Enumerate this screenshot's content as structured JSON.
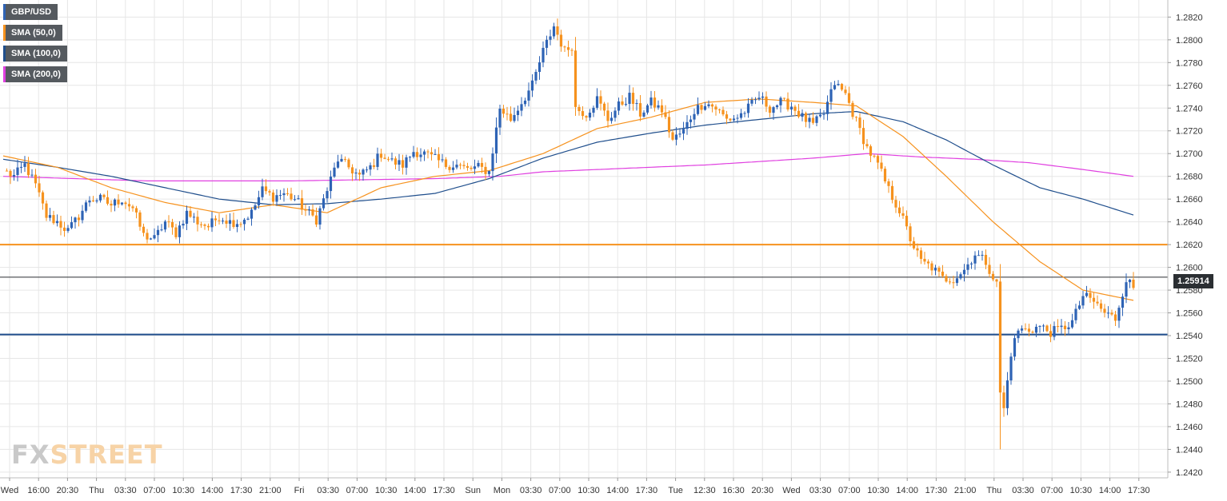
{
  "chart_data": {
    "type": "candlestick",
    "symbol": "GBP/USD",
    "legend": [
      {
        "label": "GBP/USD",
        "color": "#2e63b5"
      },
      {
        "label": "SMA (50,0)",
        "color": "#f6921e"
      },
      {
        "label": "SMA (100,0)",
        "color": "#1f4e8c"
      },
      {
        "label": "SMA (200,0)",
        "color": "#e040e0"
      }
    ],
    "ylim": [
      1.2415,
      1.2835
    ],
    "yticks": [
      "1.2820",
      "1.2800",
      "1.2780",
      "1.2760",
      "1.2740",
      "1.2720",
      "1.2700",
      "1.2680",
      "1.2660",
      "1.2640",
      "1.2620",
      "1.2600",
      "1.2580",
      "1.2560",
      "1.2540",
      "1.2520",
      "1.2500",
      "1.2480",
      "1.2460",
      "1.2440",
      "1.2420"
    ],
    "xticks": [
      "Wed",
      "16:00",
      "20:30",
      "Thu",
      "03:30",
      "07:00",
      "10:30",
      "14:00",
      "17:30",
      "21:00",
      "Fri",
      "03:30",
      "07:00",
      "10:30",
      "14:00",
      "17:30",
      "Sun",
      "Mon",
      "03:30",
      "07:00",
      "10:30",
      "14:00",
      "17:30",
      "Tue",
      "12:30",
      "16:30",
      "20:30",
      "Wed",
      "03:30",
      "07:00",
      "10:30",
      "14:00",
      "17:30",
      "21:00",
      "Thu",
      "03:30",
      "07:00",
      "10:30",
      "14:00",
      "17:30"
    ],
    "current_price": "1.25914",
    "current_price_value": 1.25914,
    "horizontal_levels": [
      {
        "value": 1.262,
        "color": "#f6921e"
      },
      {
        "value": 1.2541,
        "color": "#1f4e8c"
      }
    ],
    "close_anchors": [
      [
        0,
        1.2685
      ],
      [
        3,
        1.268
      ],
      [
        6,
        1.269
      ],
      [
        9,
        1.2672
      ],
      [
        12,
        1.2645
      ],
      [
        15,
        1.264
      ],
      [
        18,
        1.2632
      ],
      [
        21,
        1.2645
      ],
      [
        24,
        1.266
      ],
      [
        27,
        1.266
      ],
      [
        30,
        1.2655
      ],
      [
        33,
        1.266
      ],
      [
        36,
        1.2652
      ],
      [
        39,
        1.2628
      ],
      [
        42,
        1.2625
      ],
      [
        45,
        1.264
      ],
      [
        48,
        1.263
      ],
      [
        51,
        1.2648
      ],
      [
        54,
        1.264
      ],
      [
        57,
        1.2636
      ],
      [
        60,
        1.2645
      ],
      [
        63,
        1.264
      ],
      [
        66,
        1.264
      ],
      [
        69,
        1.2648
      ],
      [
        72,
        1.2668
      ],
      [
        75,
        1.2662
      ],
      [
        78,
        1.2665
      ],
      [
        81,
        1.266
      ],
      [
        84,
        1.265
      ],
      [
        87,
        1.2642
      ],
      [
        90,
        1.2668
      ],
      [
        93,
        1.2695
      ],
      [
        96,
        1.2688
      ],
      [
        99,
        1.268
      ],
      [
        102,
        1.2688
      ],
      [
        105,
        1.27
      ],
      [
        108,
        1.2693
      ],
      [
        111,
        1.269
      ],
      [
        114,
        1.2702
      ],
      [
        117,
        1.27
      ],
      [
        120,
        1.2695
      ],
      [
        123,
        1.269
      ],
      [
        126,
        1.269
      ],
      [
        129,
        1.2686
      ],
      [
        132,
        1.2688
      ],
      [
        135,
        1.2684
      ],
      [
        138,
        1.274
      ],
      [
        141,
        1.273
      ],
      [
        144,
        1.2745
      ],
      [
        147,
        1.276
      ],
      [
        150,
        1.279
      ],
      [
        153,
        1.2812
      ],
      [
        156,
        1.279
      ],
      [
        158,
        1.2795
      ],
      [
        159,
        1.274
      ],
      [
        162,
        1.2735
      ],
      [
        165,
        1.2748
      ],
      [
        168,
        1.273
      ],
      [
        171,
        1.2742
      ],
      [
        174,
        1.275
      ],
      [
        177,
        1.2735
      ],
      [
        180,
        1.2745
      ],
      [
        183,
        1.2738
      ],
      [
        186,
        1.2712
      ],
      [
        189,
        1.272
      ],
      [
        192,
        1.2738
      ],
      [
        195,
        1.2745
      ],
      [
        198,
        1.274
      ],
      [
        201,
        1.273
      ],
      [
        204,
        1.2732
      ],
      [
        207,
        1.274
      ],
      [
        210,
        1.275
      ],
      [
        213,
        1.274
      ],
      [
        216,
        1.2745
      ],
      [
        219,
        1.2742
      ],
      [
        222,
        1.2732
      ],
      [
        225,
        1.2725
      ],
      [
        228,
        1.2735
      ],
      [
        231,
        1.2762
      ],
      [
        234,
        1.2752
      ],
      [
        237,
        1.2728
      ],
      [
        240,
        1.2705
      ],
      [
        243,
        1.269
      ],
      [
        246,
        1.2668
      ],
      [
        249,
        1.265
      ],
      [
        252,
        1.2625
      ],
      [
        255,
        1.2605
      ],
      [
        258,
        1.26
      ],
      [
        261,
        1.259
      ],
      [
        264,
        1.259
      ],
      [
        267,
        1.2598
      ],
      [
        270,
        1.2612
      ],
      [
        273,
        1.2605
      ],
      [
        276,
        1.2585
      ],
      [
        277,
        1.249
      ],
      [
        278,
        1.2475
      ],
      [
        280,
        1.2525
      ],
      [
        282,
        1.2545
      ],
      [
        285,
        1.2545
      ],
      [
        288,
        1.2548
      ],
      [
        291,
        1.2543
      ],
      [
        294,
        1.2546
      ],
      [
        297,
        1.2552
      ],
      [
        300,
        1.2575
      ],
      [
        303,
        1.257
      ],
      [
        306,
        1.256
      ],
      [
        309,
        1.2555
      ],
      [
        312,
        1.259
      ],
      [
        314,
        1.2582
      ]
    ],
    "sma50_anchors": [
      [
        0,
        1.2698
      ],
      [
        15,
        1.2688
      ],
      [
        30,
        1.267
      ],
      [
        45,
        1.2657
      ],
      [
        60,
        1.2648
      ],
      [
        75,
        1.2655
      ],
      [
        90,
        1.2648
      ],
      [
        105,
        1.267
      ],
      [
        120,
        1.268
      ],
      [
        135,
        1.2685
      ],
      [
        150,
        1.27
      ],
      [
        165,
        1.2722
      ],
      [
        180,
        1.2732
      ],
      [
        195,
        1.2745
      ],
      [
        210,
        1.2748
      ],
      [
        225,
        1.2745
      ],
      [
        237,
        1.2742
      ],
      [
        250,
        1.2715
      ],
      [
        262,
        1.268
      ],
      [
        275,
        1.264
      ],
      [
        288,
        1.2605
      ],
      [
        300,
        1.258
      ],
      [
        314,
        1.2571
      ]
    ],
    "sma100_anchors": [
      [
        0,
        1.2695
      ],
      [
        15,
        1.2688
      ],
      [
        30,
        1.268
      ],
      [
        45,
        1.267
      ],
      [
        60,
        1.266
      ],
      [
        75,
        1.2655
      ],
      [
        90,
        1.2656
      ],
      [
        105,
        1.266
      ],
      [
        120,
        1.2665
      ],
      [
        135,
        1.2678
      ],
      [
        150,
        1.2696
      ],
      [
        165,
        1.271
      ],
      [
        180,
        1.2718
      ],
      [
        195,
        1.2725
      ],
      [
        210,
        1.273
      ],
      [
        225,
        1.2735
      ],
      [
        237,
        1.2737
      ],
      [
        250,
        1.2728
      ],
      [
        262,
        1.2712
      ],
      [
        275,
        1.269
      ],
      [
        288,
        1.267
      ],
      [
        300,
        1.266
      ],
      [
        314,
        1.2646
      ]
    ],
    "sma200_anchors": [
      [
        0,
        1.268
      ],
      [
        20,
        1.2678
      ],
      [
        40,
        1.2676
      ],
      [
        60,
        1.2676
      ],
      [
        80,
        1.2676
      ],
      [
        100,
        1.2677
      ],
      [
        120,
        1.2678
      ],
      [
        138,
        1.268
      ],
      [
        150,
        1.2684
      ],
      [
        165,
        1.2686
      ],
      [
        180,
        1.2688
      ],
      [
        195,
        1.269
      ],
      [
        210,
        1.2693
      ],
      [
        225,
        1.2696
      ],
      [
        240,
        1.27
      ],
      [
        255,
        1.2697
      ],
      [
        270,
        1.2695
      ],
      [
        285,
        1.2692
      ],
      [
        300,
        1.2686
      ],
      [
        314,
        1.268
      ]
    ]
  },
  "logo": {
    "fx": "FX",
    "street": "STREET"
  }
}
